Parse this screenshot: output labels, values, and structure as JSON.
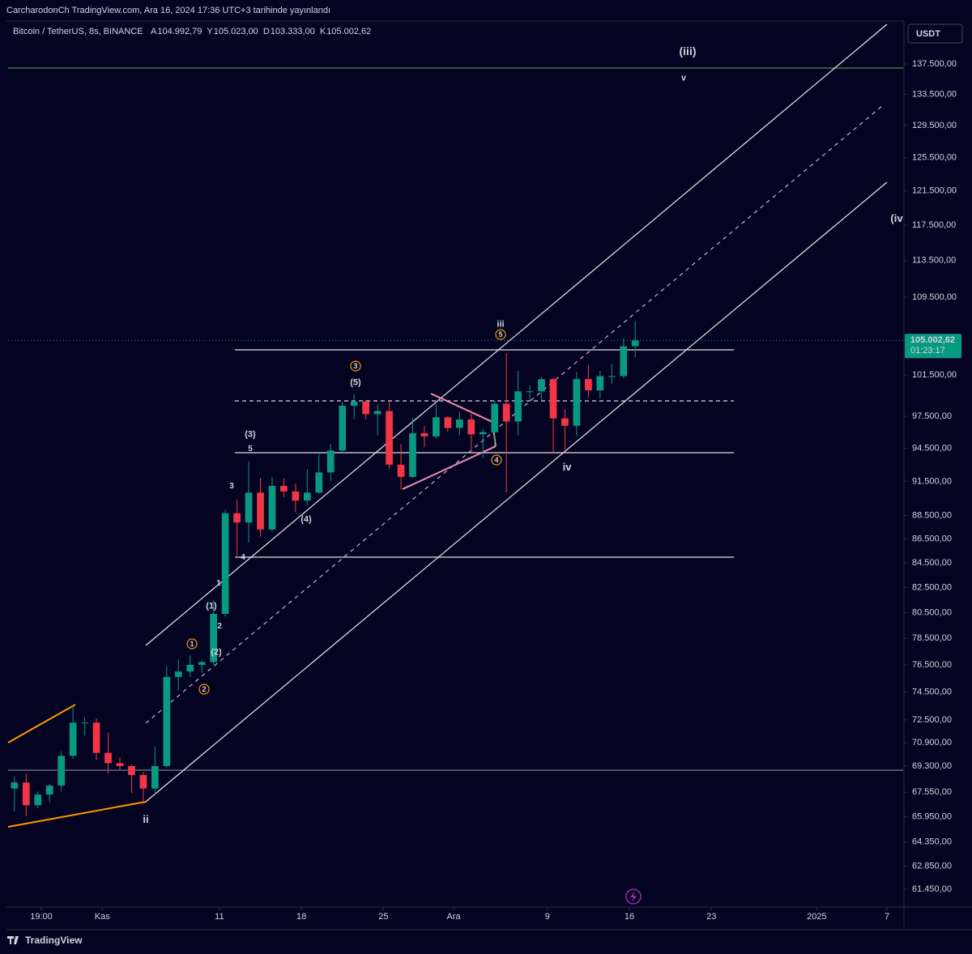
{
  "header": {
    "published": "CarcharodonCh TradingView.com, Ara 16, 2024 17:36 UTC+3 tarihinde yayınlandı",
    "symbol": "Bitcoin / TetherUS, 8s, BINANCE",
    "ohlc_labels": [
      "A",
      "Y",
      "D",
      "K"
    ],
    "ohlc_values": [
      "104.992,79",
      "105.023,00",
      "103.333,00",
      "105.002,62"
    ],
    "currency": "USDT",
    "countdown": "01:23:17",
    "brand": "TradingView"
  },
  "chart_data": {
    "type": "candlestick",
    "log_scale": true,
    "grid": false,
    "up_color": "#089981",
    "down_color": "#f23645",
    "x": [
      "2024-10-24",
      "2024-10-25",
      "2024-10-26",
      "2024-10-27",
      "2024-10-28",
      "2024-10-29",
      "2024-10-30",
      "2024-10-31",
      "2024-11-01",
      "2024-11-02",
      "2024-11-03",
      "2024-11-04",
      "2024-11-05",
      "2024-11-06",
      "2024-11-07",
      "2024-11-08",
      "2024-11-09",
      "2024-11-10",
      "2024-11-11",
      "2024-11-12",
      "2024-11-13",
      "2024-11-14",
      "2024-11-15",
      "2024-11-16",
      "2024-11-17",
      "2024-11-18",
      "2024-11-19",
      "2024-11-20",
      "2024-11-21",
      "2024-11-22",
      "2024-11-23",
      "2024-11-24",
      "2024-11-25",
      "2024-11-26",
      "2024-11-27",
      "2024-11-28",
      "2024-11-29",
      "2024-11-30",
      "2024-12-01",
      "2024-12-02",
      "2024-12-03",
      "2024-12-04",
      "2024-12-05",
      "2024-12-06",
      "2024-12-07",
      "2024-12-08",
      "2024-12-09",
      "2024-12-10",
      "2024-12-11",
      "2024-12-12",
      "2024-12-13",
      "2024-12-14",
      "2024-12-15",
      "2024-12-16"
    ],
    "open": [
      67800,
      68200,
      66700,
      67400,
      68000,
      70000,
      72300,
      72300,
      70200,
      69500,
      69300,
      68700,
      67800,
      69300,
      75600,
      76000,
      76500,
      76700,
      80400,
      88700,
      87900,
      90500,
      87300,
      91100,
      90600,
      89800,
      90500,
      92300,
      94300,
      98500,
      98900,
      97700,
      98000,
      93000,
      91900,
      95900,
      95600,
      97400,
      96400,
      97200,
      95800,
      96000,
      98700,
      97000,
      99900,
      99900,
      101100,
      97300,
      96600,
      101100,
      100000,
      101400,
      101400,
      104400
    ],
    "high": [
      68600,
      68800,
      67600,
      68100,
      70300,
      73500,
      72700,
      72600,
      71600,
      69900,
      69400,
      68900,
      70600,
      76400,
      76900,
      77200,
      76800,
      81500,
      89000,
      89900,
      93300,
      91800,
      91900,
      91800,
      91300,
      92600,
      94000,
      94900,
      98900,
      99600,
      99000,
      98600,
      98900,
      94900,
      97300,
      96600,
      98700,
      97500,
      97900,
      98100,
      96300,
      99000,
      103700,
      101900,
      100500,
      101300,
      101200,
      98200,
      101800,
      102500,
      101900,
      102600,
      105200,
      107000
    ],
    "low": [
      66300,
      66000,
      66500,
      66900,
      67600,
      69800,
      71400,
      69700,
      68800,
      69000,
      67500,
      66800,
      67400,
      69200,
      74600,
      75600,
      75900,
      76500,
      80200,
      85100,
      86200,
      86700,
      87100,
      90100,
      88800,
      89400,
      90400,
      91500,
      94000,
      97200,
      97200,
      95700,
      92600,
      90800,
      91800,
      94600,
      95400,
      96000,
      95700,
      94200,
      93600,
      94700,
      90500,
      95700,
      98900,
      99000,
      94200,
      94200,
      95600,
      99300,
      99200,
      100600,
      101200,
      103300
    ],
    "close": [
      68200,
      66700,
      67400,
      68000,
      70000,
      72300,
      72300,
      70200,
      69500,
      69300,
      68700,
      67800,
      69300,
      75600,
      76000,
      76500,
      76700,
      80400,
      88700,
      87900,
      90500,
      87300,
      91100,
      90600,
      89800,
      90500,
      92300,
      94300,
      98500,
      98900,
      97700,
      98000,
      93000,
      91900,
      95900,
      95600,
      97400,
      96400,
      97200,
      95800,
      96000,
      98700,
      97000,
      99900,
      99900,
      101100,
      97300,
      96600,
      101100,
      100000,
      101400,
      101400,
      104400,
      105002.62
    ],
    "last_price": {
      "value": 105002.62,
      "label": "105.002,62"
    },
    "xlim": [
      "2024-10-23T23:00",
      "2025-01-08T09:00"
    ],
    "xticks": [
      {
        "value": "2024-10-26T19:00",
        "label": "19:00"
      },
      {
        "value": "2024-11-01T00:00",
        "label": "Kas"
      },
      {
        "value": "2024-11-11T00:00",
        "label": "11"
      },
      {
        "value": "2024-11-18T00:00",
        "label": "18"
      },
      {
        "value": "2024-11-25T00:00",
        "label": "25"
      },
      {
        "value": "2024-12-01T00:00",
        "label": "Ara"
      },
      {
        "value": "2024-12-09T00:00",
        "label": "9"
      },
      {
        "value": "2024-12-16T00:00",
        "label": "16"
      },
      {
        "value": "2024-12-23T00:00",
        "label": "23"
      },
      {
        "value": "2025-01-01T00:00",
        "label": "2025"
      },
      {
        "value": "2025-01-07T00:00",
        "label": "7"
      }
    ],
    "ylim": [
      60490,
      143390
    ],
    "yticks": [
      {
        "value": 137500,
        "label": "137.500,00"
      },
      {
        "value": 133500,
        "label": "133.500,00"
      },
      {
        "value": 129500,
        "label": "129.500,00"
      },
      {
        "value": 125500,
        "label": "125.500,00"
      },
      {
        "value": 121500,
        "label": "121.500,00"
      },
      {
        "value": 117500,
        "label": "117.500,00"
      },
      {
        "value": 113500,
        "label": "113.500,00"
      },
      {
        "value": 109500,
        "label": "109.500,00"
      },
      {
        "value": 101500,
        "label": "101.500,00"
      },
      {
        "value": 97500,
        "label": "97.500,00"
      },
      {
        "value": 94500,
        "label": "94.500,00"
      },
      {
        "value": 91500,
        "label": "91.500,00"
      },
      {
        "value": 88500,
        "label": "88.500,00"
      },
      {
        "value": 86500,
        "label": "86.500,00"
      },
      {
        "value": 84500,
        "label": "84.500,00"
      },
      {
        "value": 82500,
        "label": "82.500,00"
      },
      {
        "value": 80500,
        "label": "80.500,00"
      },
      {
        "value": 78500,
        "label": "78.500,00"
      },
      {
        "value": 76500,
        "label": "76.500,00"
      },
      {
        "value": 74500,
        "label": "74.500,00"
      },
      {
        "value": 72500,
        "label": "72.500,00"
      },
      {
        "value": 70900,
        "label": "70.900,00"
      },
      {
        "value": 69300,
        "label": "69.300,00"
      },
      {
        "value": 67550,
        "label": "67.550,00"
      },
      {
        "value": 65950,
        "label": "65.950,00"
      },
      {
        "value": 64350,
        "label": "64.350,00"
      },
      {
        "value": 62850,
        "label": "62.850,00"
      },
      {
        "value": 61450,
        "label": "61.450,00"
      }
    ],
    "annotations": [
      "(iii)",
      "v",
      "(iv",
      "iii",
      "5",
      "3",
      "(5)",
      "(3)",
      "5",
      "3",
      "(4)",
      "4",
      "1",
      "(1)",
      "2",
      "1",
      "(2)",
      "2",
      "4",
      "iv",
      "ii"
    ]
  }
}
